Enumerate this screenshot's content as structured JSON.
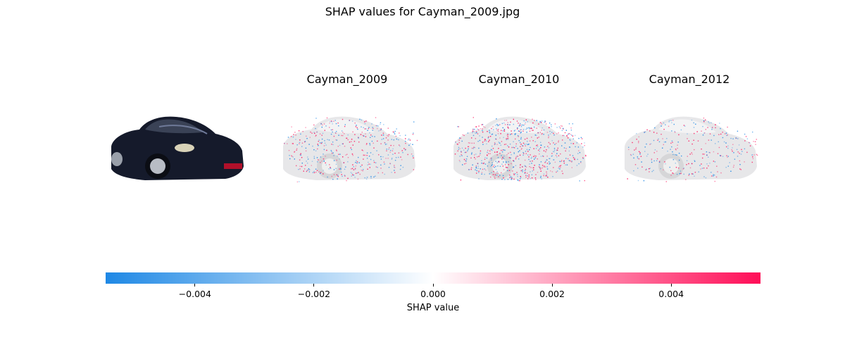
{
  "figure": {
    "suptitle": "SHAP values for Cayman_2009.jpg"
  },
  "panels": [
    {
      "label": "",
      "kind": "original-photo"
    },
    {
      "label": "Cayman_2009",
      "kind": "shap-overlay",
      "density": 0.55
    },
    {
      "label": "Cayman_2010",
      "kind": "shap-overlay",
      "density": 0.85
    },
    {
      "label": "Cayman_2012",
      "kind": "shap-overlay",
      "density": 0.35
    }
  ],
  "chart_data": {
    "type": "heatmap",
    "title": "SHAP values for Cayman_2009.jpg",
    "panel_titles": [
      "Cayman_2009",
      "Cayman_2010",
      "Cayman_2012"
    ],
    "colorbar": {
      "label": "SHAP value",
      "range": [
        -0.0055,
        0.0055
      ],
      "ticks": [
        -0.004,
        -0.002,
        0.0,
        0.002,
        0.004
      ],
      "tick_labels": [
        "−0.004",
        "−0.002",
        "0.000",
        "0.002",
        "0.004"
      ],
      "colors": {
        "negative": "#1e88e5",
        "zero": "#ffffff",
        "positive": "#ff0d57"
      }
    }
  }
}
